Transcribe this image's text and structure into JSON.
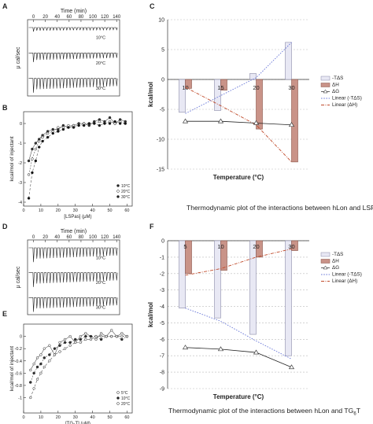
{
  "panel_letters": {
    "A": "A",
    "B": "B",
    "C": "C",
    "D": "D",
    "E": "E",
    "F": "F"
  },
  "captions": {
    "C": "Thermodynamic plot of the interactions between hLon and LSPas",
    "F_main": "Thermodynamic plot of the interactions between hLon and TG",
    "F_sub": "6",
    "F_end": "T"
  },
  "colors": {
    "tds_fill": "#e8e8f4",
    "tds_stroke": "#8a8aa8",
    "dh_fill": "#c99388",
    "dh_stroke": "#8a5448",
    "dg_line": "#222222",
    "linear_tds": "#6a78d8",
    "linear_dh": "#c04a2a",
    "grid": "#bbbbbb",
    "itc_trace": "#222222"
  },
  "chart_data": [
    {
      "panel": "A",
      "type": "line",
      "title": "Time (min)",
      "xlabel": "Time (min)",
      "ylabel": "μ cal/sec",
      "xlim": [
        -10,
        145
      ],
      "x_ticks": [
        0,
        20,
        40,
        60,
        80,
        100,
        120,
        140
      ],
      "series": [
        {
          "name": "10°C",
          "n_injections": 26,
          "depth": "small"
        },
        {
          "name": "20°C",
          "n_injections": 26,
          "depth": "medium"
        },
        {
          "name": "30°C",
          "n_injections": 26,
          "depth": "large"
        }
      ]
    },
    {
      "panel": "B",
      "type": "scatter",
      "xlabel": "[LSPas] (μM)",
      "ylabel": "kcal/mol of injectant",
      "xlim": [
        0,
        63
      ],
      "ylim": [
        -4.2,
        0.6
      ],
      "x_ticks": [
        0,
        10,
        20,
        30,
        40,
        50,
        60
      ],
      "y_ticks": [
        0,
        -1,
        -2,
        -3,
        -4
      ],
      "legend": [
        "10°C",
        "20°C",
        "30°C"
      ],
      "series": [
        {
          "name": "10°C",
          "marker": "filled",
          "x": [
            3,
            5,
            7,
            9,
            11,
            14,
            17,
            20,
            23,
            26,
            29,
            32,
            35,
            38,
            41,
            44,
            47,
            50,
            53,
            56,
            59
          ],
          "y": [
            -1.9,
            -1.3,
            -1.0,
            -0.8,
            -0.6,
            -0.4,
            -0.3,
            -0.3,
            -0.1,
            -0.2,
            -0.1,
            0.0,
            0.0,
            -0.1,
            0.1,
            0.2,
            0.1,
            0.3,
            0.0,
            0.2,
            0.1
          ]
        },
        {
          "name": "20°C",
          "marker": "open",
          "x": [
            3,
            5,
            7,
            9,
            11,
            14,
            17,
            20,
            23,
            26,
            29,
            32,
            35,
            38,
            41,
            44,
            47,
            50,
            53,
            56,
            59
          ],
          "y": [
            -2.6,
            -1.8,
            -1.3,
            -0.9,
            -0.7,
            -0.5,
            -0.4,
            -0.2,
            -0.2,
            -0.1,
            -0.1,
            -0.1,
            0.0,
            0.0,
            0.0,
            0.1,
            0.0,
            0.1,
            0.0,
            0.1,
            0.0
          ]
        },
        {
          "name": "30°C",
          "marker": "filled-dark",
          "x": [
            3,
            5,
            7,
            9,
            11,
            14,
            17,
            20,
            23,
            26,
            29,
            32,
            35,
            38,
            41,
            44,
            47,
            50,
            53,
            56,
            59
          ],
          "y": [
            -3.8,
            -2.5,
            -1.9,
            -1.2,
            -0.9,
            -0.7,
            -0.5,
            -0.4,
            -0.3,
            -0.2,
            -0.2,
            -0.1,
            -0.1,
            0.0,
            0.0,
            -0.1,
            0.0,
            0.0,
            0.1,
            0.0,
            0.0
          ]
        }
      ]
    },
    {
      "panel": "C",
      "type": "bar",
      "xlabel": "Temperature (°C)",
      "ylabel": "kcal/mol",
      "ylim": [
        -15,
        10
      ],
      "y_ticks": [
        10,
        5,
        0,
        -5,
        -10,
        -15
      ],
      "categories": [
        "10",
        "15",
        "20",
        "30"
      ],
      "series": [
        {
          "name": "-TΔS",
          "values": [
            -5.5,
            -5.2,
            1.0,
            6.2
          ]
        },
        {
          "name": "ΔH",
          "values": [
            -1.5,
            -1.8,
            -8.3,
            -13.8
          ]
        },
        {
          "name": "ΔG",
          "values": [
            -7.0,
            -7.0,
            -7.3,
            -7.6
          ]
        },
        {
          "name": "Linear (-TΔS)",
          "values": [
            -5.7,
            -2.7,
            0.3,
            6.2
          ]
        },
        {
          "name": "Linear (ΔH)",
          "values": [
            -1.3,
            -4.4,
            -7.6,
            -13.8
          ]
        }
      ]
    },
    {
      "panel": "D",
      "type": "line",
      "title": "Time (min)",
      "xlabel": "Time (min)",
      "ylabel": "μ cal/sec",
      "xlim": [
        -10,
        145
      ],
      "x_ticks": [
        0,
        20,
        40,
        60,
        80,
        100,
        120,
        140
      ],
      "series": [
        {
          "name": "10°C",
          "n_injections": 26,
          "depth": "large"
        },
        {
          "name": "20°C",
          "n_injections": 26,
          "depth": "large"
        },
        {
          "name": "30°C",
          "n_injections": 26,
          "depth": "large"
        }
      ]
    },
    {
      "panel": "E",
      "type": "scatter",
      "xlabel": "[TG₆T] (μM)",
      "ylabel": "kcal/mol of injectant",
      "xlim": [
        0,
        63
      ],
      "ylim": [
        -1.25,
        0.2
      ],
      "x_ticks": [
        0,
        10,
        20,
        30,
        40,
        50,
        60
      ],
      "y_ticks": [
        0,
        -0.2,
        -0.4,
        -0.6,
        -0.8,
        -1
      ],
      "legend": [
        "5°C",
        "10°C",
        "20°C"
      ],
      "series": [
        {
          "name": "5°C",
          "marker": "open",
          "x": [
            4,
            6,
            8,
            10,
            12,
            15,
            18,
            21,
            24,
            27,
            30,
            33,
            36,
            39,
            42,
            45,
            48,
            51,
            54,
            57,
            60
          ],
          "y": [
            -0.55,
            -0.45,
            -0.35,
            -0.3,
            -0.2,
            -0.15,
            -0.3,
            -0.1,
            -0.05,
            0.0,
            -0.1,
            0.0,
            0.05,
            0.0,
            -0.05,
            0.05,
            0.0,
            0.1,
            0.0,
            0.05,
            0.0
          ]
        },
        {
          "name": "10°C",
          "marker": "filled",
          "x": [
            4,
            6,
            8,
            10,
            12,
            15,
            18,
            21,
            24,
            27,
            30,
            33,
            36,
            39,
            42,
            45,
            48,
            51,
            54,
            57,
            60
          ],
          "y": [
            -0.75,
            -0.6,
            -0.5,
            -0.45,
            -0.35,
            -0.3,
            -0.2,
            -0.15,
            -0.1,
            -0.1,
            -0.05,
            -0.05,
            0.0,
            0.0,
            0.0,
            -0.05,
            0.0,
            0.0,
            0.0,
            -0.05,
            0.0
          ]
        },
        {
          "name": "20°C",
          "marker": "open-small",
          "x": [
            4,
            6,
            8,
            10,
            12,
            15,
            18,
            21,
            24,
            27,
            30,
            33,
            36,
            39,
            42,
            45,
            48,
            51,
            54,
            57,
            60
          ],
          "y": [
            -1.0,
            -0.85,
            -0.7,
            -0.6,
            -0.5,
            -0.4,
            -0.3,
            -0.25,
            -0.2,
            -0.15,
            -0.1,
            -0.1,
            -0.05,
            -0.05,
            0.0,
            0.0,
            0.0,
            0.0,
            0.0,
            0.0,
            0.0
          ]
        }
      ]
    },
    {
      "panel": "F",
      "type": "bar",
      "xlabel": "Temperature (°C)",
      "ylabel": "kcal/mol",
      "ylim": [
        -9,
        0
      ],
      "y_ticks": [
        0,
        -1,
        -2,
        -3,
        -4,
        -5,
        -6,
        -7,
        -8,
        -9
      ],
      "categories": [
        "5",
        "10",
        "20",
        "30"
      ],
      "series": [
        {
          "name": "-TΔS",
          "values": [
            -4.1,
            -4.7,
            -5.7,
            -7.0
          ]
        },
        {
          "name": "ΔH",
          "values": [
            -2.0,
            -1.8,
            -1.0,
            -0.6
          ]
        },
        {
          "name": "ΔG",
          "values": [
            -6.5,
            -6.6,
            -6.8,
            -7.7
          ]
        },
        {
          "name": "Linear (-TΔS)",
          "values": [
            -4.1,
            -4.9,
            -6.1,
            -7.2
          ]
        },
        {
          "name": "Linear (ΔH)",
          "values": [
            -2.1,
            -1.7,
            -1.0,
            -0.5
          ]
        }
      ]
    }
  ]
}
